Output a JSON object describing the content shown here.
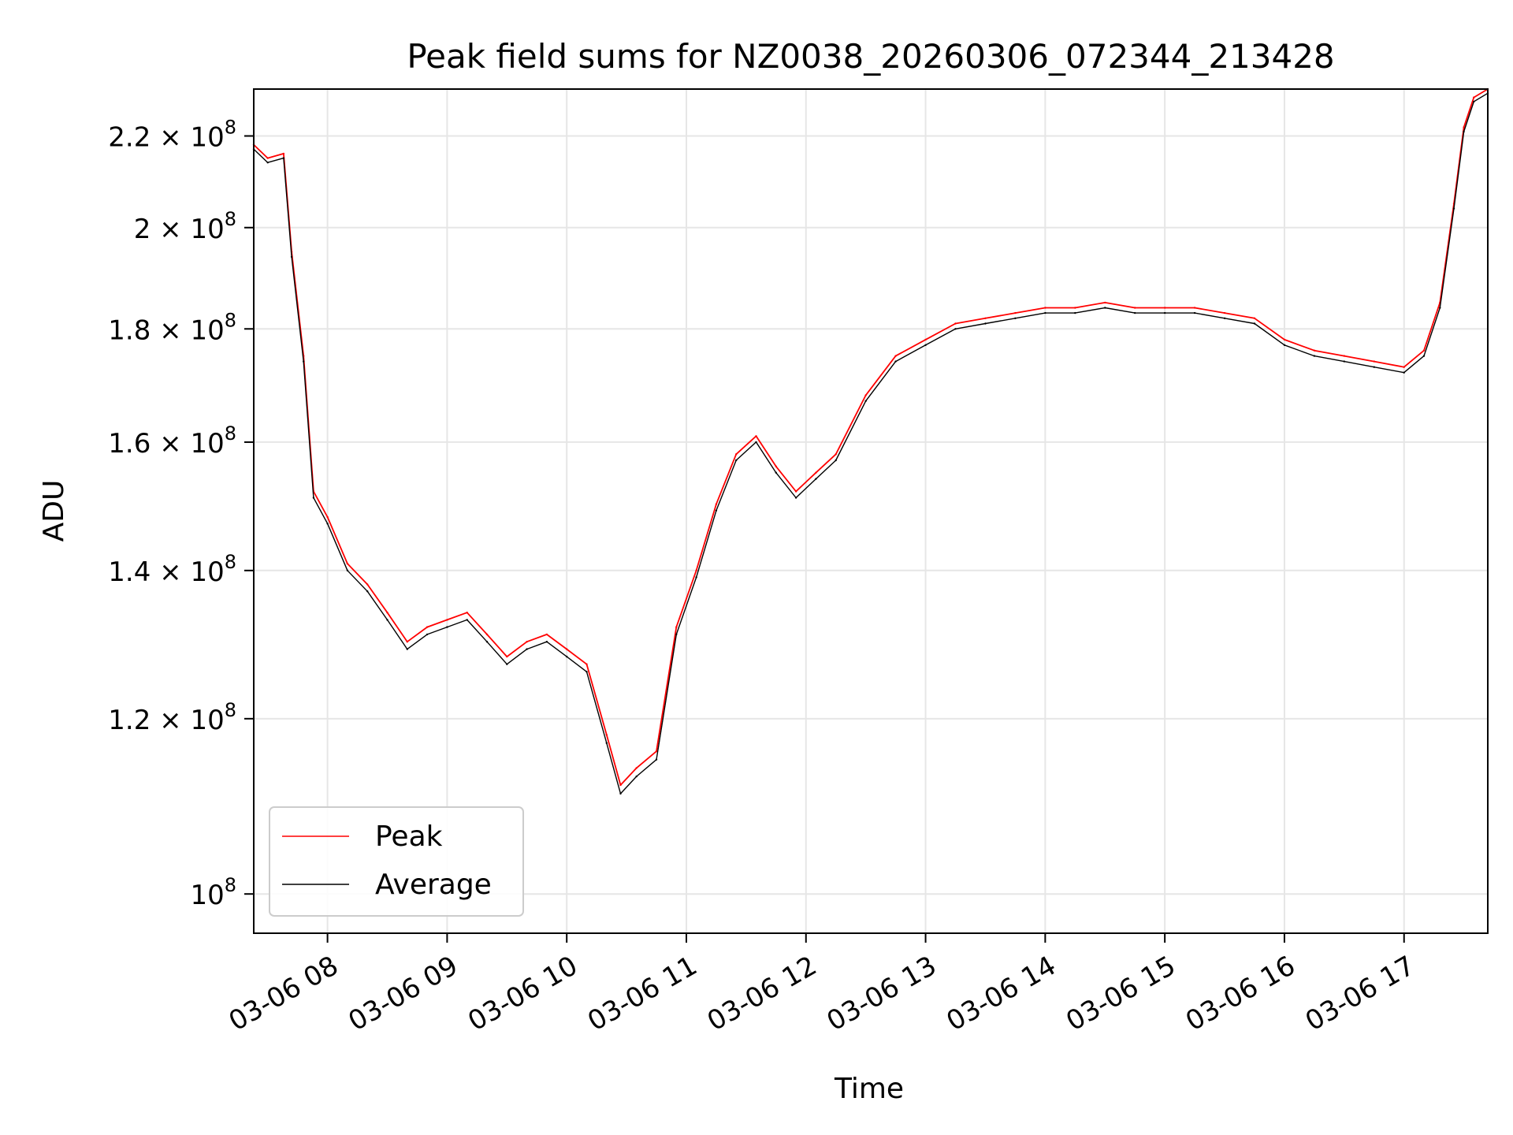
{
  "chart_data": {
    "type": "line",
    "title": "Peak field sums for NZ0038_20260306_072344_213428",
    "xlabel": "Time",
    "ylabel": "ADU",
    "yscale": "log",
    "xlim": [
      "03-06 07:23",
      "03-06 17:42"
    ],
    "ylim": [
      96000000,
      231000000
    ],
    "grid": true,
    "legend_position": "lower-left",
    "x_ticks": [
      {
        "value": "03-06 08:00",
        "label": "03-06 08"
      },
      {
        "value": "03-06 09:00",
        "label": "03-06 09"
      },
      {
        "value": "03-06 10:00",
        "label": "03-06 10"
      },
      {
        "value": "03-06 11:00",
        "label": "03-06 11"
      },
      {
        "value": "03-06 12:00",
        "label": "03-06 12"
      },
      {
        "value": "03-06 13:00",
        "label": "03-06 13"
      },
      {
        "value": "03-06 14:00",
        "label": "03-06 14"
      },
      {
        "value": "03-06 15:00",
        "label": "03-06 15"
      },
      {
        "value": "03-06 16:00",
        "label": "03-06 16"
      },
      {
        "value": "03-06 17:00",
        "label": "03-06 17"
      }
    ],
    "y_ticks": [
      {
        "value": 100000000,
        "mantissa": "",
        "base": "10",
        "exp": "8"
      },
      {
        "value": 120000000,
        "mantissa": "1.2",
        "base": "10",
        "exp": "8"
      },
      {
        "value": 140000000,
        "mantissa": "1.4",
        "base": "10",
        "exp": "8"
      },
      {
        "value": 160000000,
        "mantissa": "1.6",
        "base": "10",
        "exp": "8"
      },
      {
        "value": 180000000,
        "mantissa": "1.8",
        "base": "10",
        "exp": "8"
      },
      {
        "value": 200000000,
        "mantissa": "2",
        "base": "10",
        "exp": "8"
      },
      {
        "value": 220000000,
        "mantissa": "2.2",
        "base": "10",
        "exp": "8"
      }
    ],
    "series": [
      {
        "name": "Peak",
        "color": "#ff0000",
        "x": [
          "03-06 07:23",
          "03-06 07:30",
          "03-06 07:38",
          "03-06 07:42",
          "03-06 07:48",
          "03-06 07:53",
          "03-06 08:00",
          "03-06 08:10",
          "03-06 08:20",
          "03-06 08:30",
          "03-06 08:40",
          "03-06 08:50",
          "03-06 09:00",
          "03-06 09:10",
          "03-06 09:20",
          "03-06 09:30",
          "03-06 09:40",
          "03-06 09:50",
          "03-06 10:00",
          "03-06 10:10",
          "03-06 10:20",
          "03-06 10:27",
          "03-06 10:35",
          "03-06 10:45",
          "03-06 10:55",
          "03-06 11:05",
          "03-06 11:15",
          "03-06 11:25",
          "03-06 11:35",
          "03-06 11:45",
          "03-06 11:55",
          "03-06 12:05",
          "03-06 12:15",
          "03-06 12:30",
          "03-06 12:45",
          "03-06 13:00",
          "03-06 13:15",
          "03-06 13:30",
          "03-06 13:45",
          "03-06 14:00",
          "03-06 14:15",
          "03-06 14:30",
          "03-06 14:45",
          "03-06 15:00",
          "03-06 15:15",
          "03-06 15:30",
          "03-06 15:45",
          "03-06 16:00",
          "03-06 16:15",
          "03-06 16:30",
          "03-06 16:45",
          "03-06 17:00",
          "03-06 17:10",
          "03-06 17:18",
          "03-06 17:25",
          "03-06 17:30",
          "03-06 17:35",
          "03-06 17:42"
        ],
        "y": [
          218000000,
          215000000,
          216000000,
          195000000,
          175000000,
          152000000,
          148000000,
          141000000,
          138000000,
          134000000,
          130000000,
          132000000,
          133000000,
          134000000,
          131000000,
          128000000,
          130000000,
          131000000,
          129000000,
          127000000,
          118000000,
          112000000,
          114000000,
          116000000,
          132000000,
          140000000,
          150000000,
          158000000,
          161000000,
          156000000,
          152000000,
          155000000,
          158000000,
          168000000,
          175000000,
          178000000,
          181000000,
          182000000,
          183000000,
          184000000,
          184000000,
          185000000,
          184000000,
          184000000,
          184000000,
          183000000,
          182000000,
          178000000,
          176000000,
          175000000,
          174000000,
          173000000,
          176000000,
          185000000,
          205000000,
          222000000,
          229000000,
          231000000
        ]
      },
      {
        "name": "Average",
        "color": "#000000",
        "x": [
          "03-06 07:23",
          "03-06 07:30",
          "03-06 07:38",
          "03-06 07:42",
          "03-06 07:48",
          "03-06 07:53",
          "03-06 08:00",
          "03-06 08:10",
          "03-06 08:20",
          "03-06 08:30",
          "03-06 08:40",
          "03-06 08:50",
          "03-06 09:00",
          "03-06 09:10",
          "03-06 09:20",
          "03-06 09:30",
          "03-06 09:40",
          "03-06 09:50",
          "03-06 10:00",
          "03-06 10:10",
          "03-06 10:20",
          "03-06 10:27",
          "03-06 10:35",
          "03-06 10:45",
          "03-06 10:55",
          "03-06 11:05",
          "03-06 11:15",
          "03-06 11:25",
          "03-06 11:35",
          "03-06 11:45",
          "03-06 11:55",
          "03-06 12:05",
          "03-06 12:15",
          "03-06 12:30",
          "03-06 12:45",
          "03-06 13:00",
          "03-06 13:15",
          "03-06 13:30",
          "03-06 13:45",
          "03-06 14:00",
          "03-06 14:15",
          "03-06 14:30",
          "03-06 14:45",
          "03-06 15:00",
          "03-06 15:15",
          "03-06 15:30",
          "03-06 15:45",
          "03-06 16:00",
          "03-06 16:15",
          "03-06 16:30",
          "03-06 16:45",
          "03-06 17:00",
          "03-06 17:10",
          "03-06 17:18",
          "03-06 17:25",
          "03-06 17:30",
          "03-06 17:35",
          "03-06 17:42"
        ],
        "y": [
          217000000,
          214000000,
          215000000,
          194000000,
          174000000,
          151000000,
          147000000,
          140000000,
          137000000,
          133000000,
          129000000,
          131000000,
          132000000,
          133000000,
          130000000,
          127000000,
          129000000,
          130000000,
          128000000,
          126000000,
          117000000,
          111000000,
          113000000,
          115000000,
          131000000,
          139000000,
          149000000,
          157000000,
          160000000,
          155000000,
          151000000,
          154000000,
          157000000,
          167000000,
          174000000,
          177000000,
          180000000,
          181000000,
          182000000,
          183000000,
          183000000,
          184000000,
          183000000,
          183000000,
          183000000,
          182000000,
          181000000,
          177000000,
          175000000,
          174000000,
          173000000,
          172000000,
          175000000,
          184000000,
          204000000,
          221000000,
          228000000,
          230000000
        ]
      }
    ]
  }
}
